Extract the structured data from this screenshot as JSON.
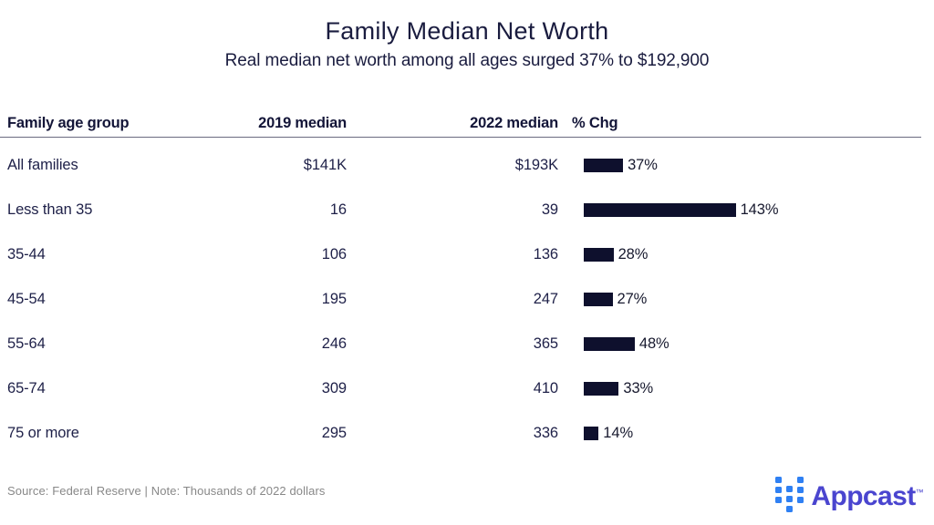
{
  "title": "Family Median Net Worth",
  "subtitle": "Real median net worth among all ages surged 37% to $192,900",
  "table": {
    "headers": [
      "Family age group",
      "2019 median",
      "2022 median",
      "% Chg"
    ],
    "rows": [
      {
        "group": "All families",
        "m2019": "$141K",
        "m2022": "$193K",
        "pct": 37,
        "pct_label": "37%"
      },
      {
        "group": "Less than 35",
        "m2019": "16",
        "m2022": "39",
        "pct": 143,
        "pct_label": "143%"
      },
      {
        "group": "35-44",
        "m2019": "106",
        "m2022": "136",
        "pct": 28,
        "pct_label": "28%"
      },
      {
        "group": "45-54",
        "m2019": "195",
        "m2022": "247",
        "pct": 27,
        "pct_label": "27%"
      },
      {
        "group": "55-64",
        "m2019": "246",
        "m2022": "365",
        "pct": 48,
        "pct_label": "48%"
      },
      {
        "group": "65-74",
        "m2019": "309",
        "m2022": "410",
        "pct": 33,
        "pct_label": "33%"
      },
      {
        "group": "75 or more",
        "m2019": "295",
        "m2022": "336",
        "pct": 14,
        "pct_label": "14%"
      }
    ]
  },
  "chart_data": {
    "type": "bar",
    "title": "Family Median Net Worth",
    "subtitle": "Real median net worth among all ages surged 37% to $192,900",
    "categories": [
      "All families",
      "Less than 35",
      "35-44",
      "45-54",
      "55-64",
      "65-74",
      "75 or more"
    ],
    "series": [
      {
        "name": "2019 median",
        "values": [
          141,
          16,
          106,
          195,
          246,
          309,
          295
        ]
      },
      {
        "name": "2022 median",
        "values": [
          193,
          39,
          136,
          247,
          365,
          410,
          336
        ]
      },
      {
        "name": "% Chg",
        "values": [
          37,
          143,
          28,
          27,
          48,
          33,
          14
        ]
      }
    ],
    "units": "Thousands of 2022 dollars",
    "bar_series_plotted": "% Chg",
    "xlim": [
      0,
      143
    ],
    "grid": false,
    "legend": "none",
    "source": "Federal Reserve"
  },
  "footer": {
    "source": "Source: Federal Reserve | Note: Thousands of 2022 dollars",
    "brand": "Appcast",
    "trademark": "™"
  },
  "colors": {
    "navy": "#1a1c3f",
    "header": "#131538",
    "rowtext": "#1e2048",
    "pcttext": "#17192e",
    "bar": "#0e102d",
    "rule": "#6b6b80",
    "source": "#888888",
    "brand_blue": "#2f80f3",
    "brand_indigo": "#4a45cf"
  }
}
